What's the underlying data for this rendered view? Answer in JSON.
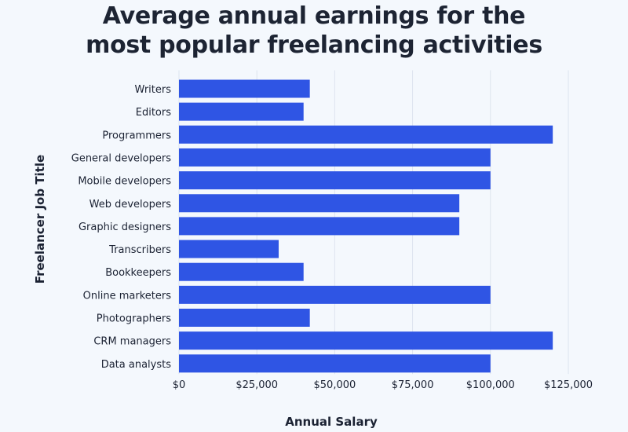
{
  "chart_data": {
    "type": "bar",
    "orientation": "horizontal",
    "title_lines": [
      "Average annual earnings for the",
      "most popular freelancing activities"
    ],
    "xlabel": "Annual Salary",
    "ylabel": "Freelancer Job Title",
    "xlim": [
      0,
      125000
    ],
    "x_ticks": [
      0,
      25000,
      50000,
      75000,
      100000,
      125000
    ],
    "x_tick_labels": [
      "$0",
      "$25,000",
      "$50,000",
      "$75,000",
      "$100,000",
      "$125,000"
    ],
    "categories": [
      "Writers",
      "Editors",
      "Programmers",
      "General developers",
      "Mobile developers",
      "Web developers",
      "Graphic designers",
      "Transcribers",
      "Bookkeepers",
      "Online marketers",
      "Photographers",
      "CRM managers",
      "Data analysts"
    ],
    "values": [
      42000,
      40000,
      120000,
      100000,
      100000,
      90000,
      90000,
      32000,
      40000,
      100000,
      42000,
      120000,
      100000
    ],
    "grid": "vertical",
    "bar_color": "#2f55e4",
    "grid_color": "#dde3ee",
    "text_color": "#1b2233"
  }
}
